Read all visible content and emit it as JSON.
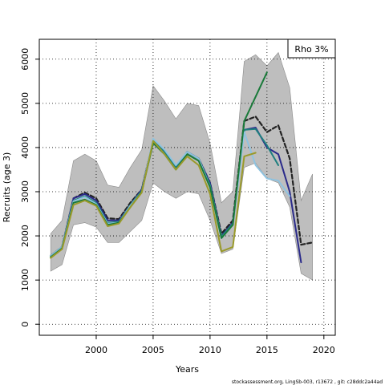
{
  "chart_data": {
    "type": "line",
    "xlabel": "Years",
    "ylabel": "Recruits (age 3)",
    "xlim": [
      1995.0,
      2021.0
    ],
    "ylim": [
      -250,
      6450
    ],
    "xticks": [
      2000,
      2005,
      2010,
      2015,
      2020
    ],
    "yticks": [
      0,
      1000,
      2000,
      3000,
      4000,
      5000,
      6000
    ],
    "grid": true,
    "grid_style": "dotted",
    "legend": {
      "position": "top-right",
      "text": "Rho 3%"
    },
    "band": {
      "color": "#bebebe",
      "x": [
        1996,
        1997,
        1998,
        1999,
        2000,
        2001,
        2002,
        2003,
        2004,
        2005,
        2006,
        2007,
        2008,
        2009,
        2010,
        2011,
        2012,
        2013,
        2014,
        2015,
        2016,
        2017,
        2018,
        2019
      ],
      "upper": [
        2050,
        2350,
        3700,
        3850,
        3700,
        3150,
        3100,
        3550,
        3950,
        5400,
        5050,
        4650,
        5000,
        4950,
        4100,
        2750,
        3000,
        5950,
        6100,
        5850,
        6150,
        5350,
        2800,
        3400
      ],
      "lower": [
        1200,
        1350,
        2250,
        2300,
        2200,
        1850,
        1850,
        2100,
        2350,
        3200,
        3000,
        2850,
        3000,
        2950,
        2350,
        1600,
        1700,
        3550,
        3650,
        3300,
        3200,
        2650,
        1150,
        1000
      ]
    },
    "series": [
      {
        "color": "#222222",
        "dash": "5,3",
        "width": 2.2,
        "x": [
          1996,
          1997,
          1998,
          1999,
          2000,
          2001,
          2002,
          2003,
          2004,
          2005,
          2006,
          2007,
          2008,
          2009,
          2010,
          2011,
          2012,
          2013,
          2014,
          2015,
          2016,
          2017,
          2018,
          2019
        ],
        "y": [
          1550,
          1750,
          2850,
          2980,
          2850,
          2400,
          2380,
          2750,
          3050,
          4150,
          3900,
          3550,
          3900,
          3750,
          3200,
          2050,
          2350,
          4600,
          4700,
          4350,
          4500,
          3750,
          1800,
          1850
        ]
      },
      {
        "color": "#2a2a8a",
        "dash": "",
        "width": 2.0,
        "x": [
          1996,
          1997,
          1998,
          1999,
          2000,
          2001,
          2002,
          2003,
          2004,
          2005,
          2006,
          2007,
          2008,
          2009,
          2010,
          2011,
          2012,
          2013,
          2014,
          2015,
          2016,
          2017,
          2018
        ],
        "y": [
          1550,
          1750,
          2850,
          2950,
          2800,
          2350,
          2350,
          2700,
          3050,
          4150,
          3900,
          3550,
          3900,
          3750,
          3200,
          2000,
          2300,
          4400,
          4450,
          4000,
          3850,
          3000,
          1400
        ]
      },
      {
        "color": "#1f7f7f",
        "dash": "",
        "width": 2.0,
        "x": [
          1996,
          1997,
          1998,
          1999,
          2000,
          2001,
          2002,
          2003,
          2004,
          2005,
          2006,
          2007,
          2008,
          2009,
          2010,
          2011,
          2012,
          2013,
          2014,
          2015,
          2016
        ],
        "y": [
          1550,
          1750,
          2800,
          2900,
          2750,
          2300,
          2320,
          2700,
          3020,
          4150,
          3900,
          3550,
          3900,
          3750,
          3150,
          1980,
          2280,
          4400,
          4420,
          4050,
          3600
        ]
      },
      {
        "color": "#8fc3e0",
        "dash": "",
        "width": 2.0,
        "x": [
          1996,
          1997,
          1998,
          1999,
          2000,
          2001,
          2002,
          2003,
          2004,
          2005,
          2006,
          2007,
          2008,
          2009,
          2010,
          2011,
          2012,
          2013,
          2014,
          2015,
          2016,
          2017
        ],
        "y": [
          1550,
          1750,
          2780,
          2880,
          2720,
          2280,
          2300,
          2680,
          3000,
          4200,
          3950,
          3600,
          3900,
          3750,
          3100,
          1950,
          2250,
          4350,
          3600,
          3300,
          3250,
          2900
        ]
      },
      {
        "color": "#1a7a3a",
        "dash": "",
        "width": 2.0,
        "x": [
          1996,
          1997,
          1998,
          1999,
          2000,
          2001,
          2002,
          2003,
          2004,
          2005,
          2006,
          2007,
          2008,
          2009,
          2010,
          2011,
          2012,
          2013,
          2014,
          2015
        ],
        "y": [
          1520,
          1720,
          2750,
          2820,
          2700,
          2250,
          2300,
          2650,
          3000,
          4100,
          3850,
          3500,
          3850,
          3700,
          3100,
          1950,
          2250,
          4600,
          5150,
          5700
        ]
      },
      {
        "color": "#9a9a2a",
        "dash": "",
        "width": 2.0,
        "x": [
          1996,
          1997,
          1998,
          1999,
          2000,
          2001,
          2002,
          2003,
          2004,
          2005,
          2006,
          2007,
          2008,
          2009,
          2010,
          2011,
          2012,
          2013,
          2014
        ],
        "y": [
          1500,
          1700,
          2700,
          2800,
          2680,
          2220,
          2280,
          2650,
          2980,
          4150,
          3850,
          3500,
          3800,
          3600,
          2950,
          1650,
          1750,
          3800,
          3880
        ]
      }
    ]
  },
  "footer": "stockassessment.org, LingSb-003, r13672 , git: c28ddc2a44ad"
}
